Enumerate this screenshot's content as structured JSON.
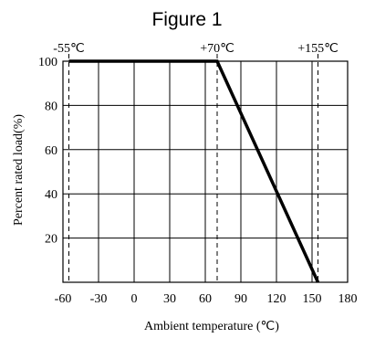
{
  "chart_data": {
    "type": "line",
    "title": "Figure 1",
    "xlabel": "Ambient temperature (℃)",
    "ylabel": "Percent rated load(%)",
    "xlim": [
      -60,
      180
    ],
    "ylim": [
      0,
      100
    ],
    "x_ticks": [
      -60,
      -30,
      0,
      30,
      60,
      90,
      120,
      150,
      180
    ],
    "y_ticks": [
      20,
      40,
      60,
      80,
      100
    ],
    "grid": true,
    "series": [
      {
        "points": [
          [
            -55,
            100
          ],
          [
            70,
            100
          ],
          [
            155,
            0
          ]
        ]
      }
    ],
    "reference_lines": [
      {
        "x": -55,
        "label": "-55℃"
      },
      {
        "x": 70,
        "label": "+70℃"
      },
      {
        "x": 155,
        "label": "+155℃"
      }
    ]
  }
}
